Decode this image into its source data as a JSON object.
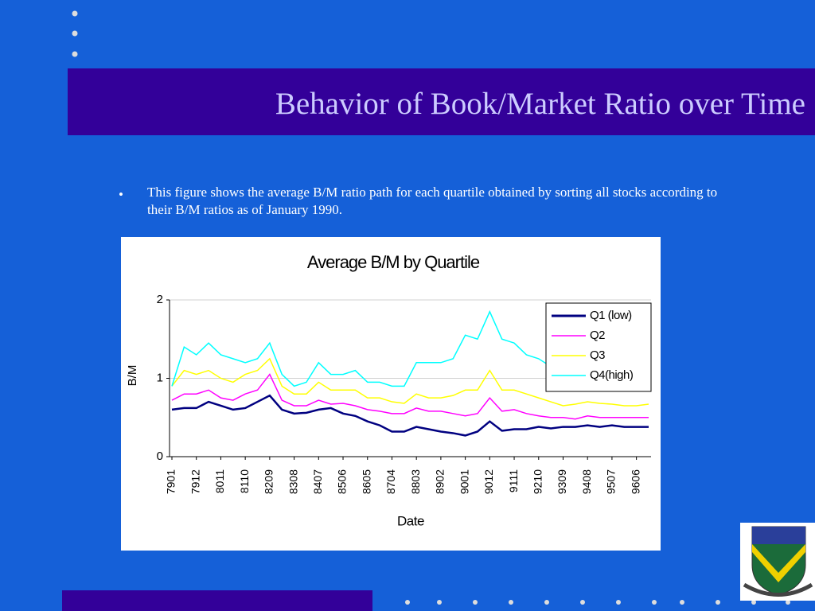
{
  "slide_title": "Behavior of Book/Market Ratio over Time",
  "bullet": "This figure shows the average B/M ratio path for each quartile obtained by sorting all stocks according to their B/M ratios as of January 1990.",
  "chart_data": {
    "type": "line",
    "title": "Average B/M by Quartile",
    "xlabel": "Date",
    "ylabel": "B/M",
    "categories": [
      "7901",
      null,
      "7912",
      null,
      "8011",
      null,
      "8110",
      null,
      "8209",
      null,
      "8308",
      null,
      "8407",
      null,
      "8506",
      null,
      "8605",
      null,
      "8704",
      null,
      "8803",
      null,
      "8902",
      null,
      "9001",
      null,
      "9012",
      null,
      "9111",
      null,
      "9210",
      null,
      "9309",
      null,
      "9408",
      null,
      "9507",
      null,
      "9606",
      null
    ],
    "series": [
      {
        "name": "Q1 (low)",
        "color": "#000080",
        "values": [
          0.6,
          0.62,
          0.62,
          0.7,
          0.65,
          0.6,
          0.62,
          0.7,
          0.78,
          0.6,
          0.55,
          0.56,
          0.6,
          0.62,
          0.55,
          0.52,
          0.45,
          0.4,
          0.32,
          0.32,
          0.38,
          0.35,
          0.32,
          0.3,
          0.27,
          0.32,
          0.45,
          0.33,
          0.35,
          0.35,
          0.38,
          0.36,
          0.38,
          0.38,
          0.4,
          0.38,
          0.4,
          0.38,
          0.38,
          0.38
        ]
      },
      {
        "name": "Q2",
        "color": "#ff00ff",
        "values": [
          0.72,
          0.8,
          0.8,
          0.85,
          0.75,
          0.72,
          0.8,
          0.85,
          1.05,
          0.72,
          0.65,
          0.65,
          0.72,
          0.67,
          0.68,
          0.65,
          0.6,
          0.58,
          0.55,
          0.55,
          0.62,
          0.58,
          0.58,
          0.55,
          0.52,
          0.55,
          0.75,
          0.58,
          0.6,
          0.55,
          0.52,
          0.5,
          0.5,
          0.48,
          0.52,
          0.5,
          0.5,
          0.5,
          0.5,
          0.5
        ]
      },
      {
        "name": "Q3",
        "color": "#ffff00",
        "values": [
          0.9,
          1.1,
          1.05,
          1.1,
          1.0,
          0.95,
          1.05,
          1.1,
          1.25,
          0.9,
          0.8,
          0.8,
          0.95,
          0.85,
          0.85,
          0.85,
          0.75,
          0.75,
          0.7,
          0.68,
          0.8,
          0.75,
          0.75,
          0.78,
          0.85,
          0.85,
          1.1,
          0.85,
          0.85,
          0.8,
          0.75,
          0.7,
          0.65,
          0.67,
          0.7,
          0.68,
          0.67,
          0.65,
          0.65,
          0.67
        ]
      },
      {
        "name": "Q4(high)",
        "color": "#00ffff",
        "values": [
          0.9,
          1.4,
          1.3,
          1.45,
          1.3,
          1.25,
          1.2,
          1.25,
          1.45,
          1.05,
          0.9,
          0.95,
          1.2,
          1.05,
          1.05,
          1.1,
          0.95,
          0.95,
          0.9,
          0.9,
          1.2,
          1.2,
          1.2,
          1.25,
          1.55,
          1.5,
          1.85,
          1.5,
          1.45,
          1.3,
          1.25,
          1.15,
          1.15,
          1.15,
          1.15,
          1.1,
          1.1,
          1.1,
          1.1,
          1.1
        ]
      }
    ],
    "ylim": [
      0,
      2
    ],
    "yticks": [
      0,
      1,
      2
    ],
    "grid": true,
    "legend": "upper right"
  }
}
